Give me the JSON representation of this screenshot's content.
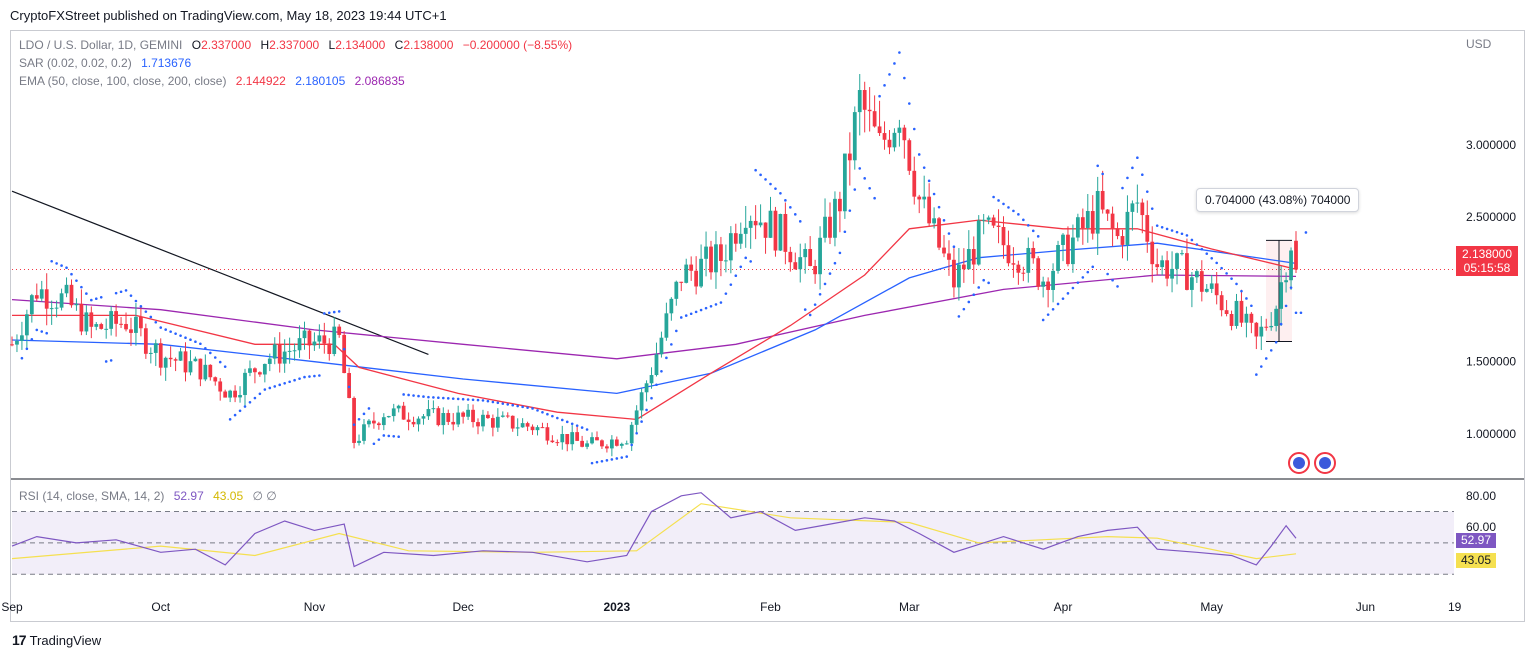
{
  "header": {
    "publisher": "CryptoFXStreet published on TradingView.com, May 18, 2023 19:44 UTC+1"
  },
  "legend": {
    "symbol": "LDO / U.S. Dollar, 1D, GEMINI",
    "ohlc": {
      "o_label": "O",
      "o": "2.337000",
      "h_label": "H",
      "h": "2.337000",
      "l_label": "L",
      "l": "2.134000",
      "c_label": "C",
      "c": "2.138000",
      "change": "−0.200000 (−8.55%)"
    },
    "sar_label": "SAR (0.02, 0.02, 0.2)",
    "sar_value": "1.713676",
    "ema_label": "EMA (50, close, 100, close, 200, close)",
    "ema50": "2.144922",
    "ema100": "2.180105",
    "ema200": "2.086835",
    "rsi_label": "RSI (14, close, SMA, 14, 2)",
    "rsi_value": "52.97",
    "rsi_sma": "43.05",
    "rsi_extra": "∅ ∅"
  },
  "axis": {
    "currency": "USD",
    "price_ticks": [
      {
        "label": "3.000000",
        "value": 3.0
      },
      {
        "label": "2.500000",
        "value": 2.5
      },
      {
        "label": "1.500000",
        "value": 1.5
      },
      {
        "label": "1.000000",
        "value": 1.0
      }
    ],
    "rsi_ticks": [
      {
        "label": "80.00",
        "value": 80
      },
      {
        "label": "60.00",
        "value": 60
      }
    ],
    "time_labels": [
      {
        "label": "Sep",
        "day": 0
      },
      {
        "label": "Oct",
        "day": 30
      },
      {
        "label": "Nov",
        "day": 61
      },
      {
        "label": "Dec",
        "day": 91
      },
      {
        "label": "2023",
        "day": 122
      },
      {
        "label": "Feb",
        "day": 153
      },
      {
        "label": "Mar",
        "day": 181
      },
      {
        "label": "Apr",
        "day": 212
      },
      {
        "label": "May",
        "day": 242
      },
      {
        "label": "Jun",
        "day": 273
      },
      {
        "label": "19",
        "day": 291
      }
    ]
  },
  "price_tag": {
    "price": "2.138000",
    "countdown": "05:15:58"
  },
  "measure": {
    "text": "0.704000 (43.08%) 704000"
  },
  "footer": {
    "brand": "TradingView"
  },
  "colors": {
    "up": "#26a69a",
    "down": "#f23645",
    "ema50": "#f23645",
    "ema100": "#2962ff",
    "ema200": "#9c27b0",
    "sar": "#2962ff",
    "rsi": "#7e57c2",
    "rsi_sma": "#f5e050"
  },
  "chart_data": {
    "type": "candlestick",
    "date_range": [
      "2022-09-01",
      "2023-05-18"
    ],
    "price_range": [
      0.75,
      3.45
    ],
    "ema_close": {
      "ema50": 2.144922,
      "ema100": 2.180105,
      "ema200": 2.086835
    },
    "close_path": [
      {
        "date": "2022-09-01",
        "close": 1.62
      },
      {
        "date": "2022-09-06",
        "close": 2.0
      },
      {
        "date": "2022-09-12",
        "close": 1.92
      },
      {
        "date": "2022-09-17",
        "close": 1.72
      },
      {
        "date": "2022-09-24",
        "close": 1.78
      },
      {
        "date": "2022-10-01",
        "close": 1.55
      },
      {
        "date": "2022-10-09",
        "close": 1.45
      },
      {
        "date": "2022-10-15",
        "close": 1.28
      },
      {
        "date": "2022-10-22",
        "close": 1.52
      },
      {
        "date": "2022-10-30",
        "close": 1.62
      },
      {
        "date": "2022-11-06",
        "close": 1.65
      },
      {
        "date": "2022-11-09",
        "close": 0.95
      },
      {
        "date": "2022-11-15",
        "close": 1.15
      },
      {
        "date": "2022-11-24",
        "close": 1.12
      },
      {
        "date": "2022-12-05",
        "close": 1.1
      },
      {
        "date": "2022-12-15",
        "close": 1.05
      },
      {
        "date": "2022-12-26",
        "close": 0.92
      },
      {
        "date": "2023-01-03",
        "close": 0.98
      },
      {
        "date": "2023-01-08",
        "close": 1.45
      },
      {
        "date": "2023-01-14",
        "close": 2.1
      },
      {
        "date": "2023-01-22",
        "close": 2.22
      },
      {
        "date": "2023-01-27",
        "close": 2.58
      },
      {
        "date": "2023-02-03",
        "close": 2.38
      },
      {
        "date": "2023-02-09",
        "close": 2.12
      },
      {
        "date": "2023-02-15",
        "close": 2.62
      },
      {
        "date": "2023-02-19",
        "close": 3.3
      },
      {
        "date": "2023-02-23",
        "close": 2.98
      },
      {
        "date": "2023-02-27",
        "close": 3.25
      },
      {
        "date": "2023-03-03",
        "close": 2.62
      },
      {
        "date": "2023-03-10",
        "close": 2.05
      },
      {
        "date": "2023-03-16",
        "close": 2.4
      },
      {
        "date": "2023-03-23",
        "close": 2.25
      },
      {
        "date": "2023-03-28",
        "close": 2.08
      },
      {
        "date": "2023-04-04",
        "close": 2.38
      },
      {
        "date": "2023-04-08",
        "close": 2.55
      },
      {
        "date": "2023-04-12",
        "close": 2.35
      },
      {
        "date": "2023-04-16",
        "close": 2.6
      },
      {
        "date": "2023-04-20",
        "close": 2.18
      },
      {
        "date": "2023-04-26",
        "close": 2.12
      },
      {
        "date": "2023-05-02",
        "close": 1.95
      },
      {
        "date": "2023-05-06",
        "close": 1.82
      },
      {
        "date": "2023-05-10",
        "close": 1.64
      },
      {
        "date": "2023-05-14",
        "close": 1.9
      },
      {
        "date": "2023-05-17",
        "close": 2.34
      },
      {
        "date": "2023-05-18",
        "close": 2.138
      }
    ],
    "ema50_path": [
      {
        "date": "2022-09-01",
        "value": 1.82
      },
      {
        "date": "2022-09-26",
        "value": 1.82
      },
      {
        "date": "2022-10-20",
        "value": 1.62
      },
      {
        "date": "2022-11-05",
        "value": 1.62
      },
      {
        "date": "2022-11-10",
        "value": 1.46
      },
      {
        "date": "2022-11-30",
        "value": 1.28
      },
      {
        "date": "2022-12-20",
        "value": 1.15
      },
      {
        "date": "2023-01-05",
        "value": 1.1
      },
      {
        "date": "2023-01-20",
        "value": 1.42
      },
      {
        "date": "2023-02-05",
        "value": 1.75
      },
      {
        "date": "2023-02-20",
        "value": 2.1
      },
      {
        "date": "2023-03-01",
        "value": 2.42
      },
      {
        "date": "2023-03-15",
        "value": 2.48
      },
      {
        "date": "2023-04-01",
        "value": 2.42
      },
      {
        "date": "2023-04-16",
        "value": 2.42
      },
      {
        "date": "2023-05-01",
        "value": 2.28
      },
      {
        "date": "2023-05-18",
        "value": 2.14
      }
    ],
    "ema100_path": [
      {
        "date": "2022-09-01",
        "value": 1.65
      },
      {
        "date": "2022-10-01",
        "value": 1.62
      },
      {
        "date": "2022-11-01",
        "value": 1.5
      },
      {
        "date": "2022-12-01",
        "value": 1.38
      },
      {
        "date": "2023-01-01",
        "value": 1.28
      },
      {
        "date": "2023-01-20",
        "value": 1.42
      },
      {
        "date": "2023-02-10",
        "value": 1.72
      },
      {
        "date": "2023-03-01",
        "value": 2.08
      },
      {
        "date": "2023-03-15",
        "value": 2.22
      },
      {
        "date": "2023-04-01",
        "value": 2.27
      },
      {
        "date": "2023-04-20",
        "value": 2.32
      },
      {
        "date": "2023-05-18",
        "value": 2.18
      }
    ],
    "ema200_path": [
      {
        "date": "2022-09-01",
        "value": 1.93
      },
      {
        "date": "2022-10-01",
        "value": 1.86
      },
      {
        "date": "2022-11-01",
        "value": 1.72
      },
      {
        "date": "2022-12-01",
        "value": 1.62
      },
      {
        "date": "2023-01-01",
        "value": 1.52
      },
      {
        "date": "2023-01-25",
        "value": 1.62
      },
      {
        "date": "2023-02-20",
        "value": 1.82
      },
      {
        "date": "2023-03-20",
        "value": 2.0
      },
      {
        "date": "2023-04-20",
        "value": 2.1
      },
      {
        "date": "2023-05-18",
        "value": 2.09
      }
    ],
    "rsi_path": [
      {
        "date": "2022-09-01",
        "value": 48
      },
      {
        "date": "2022-09-06",
        "value": 54
      },
      {
        "date": "2022-09-14",
        "value": 50
      },
      {
        "date": "2022-09-22",
        "value": 52
      },
      {
        "date": "2022-10-01",
        "value": 44
      },
      {
        "date": "2022-10-08",
        "value": 46
      },
      {
        "date": "2022-10-14",
        "value": 36
      },
      {
        "date": "2022-10-20",
        "value": 56
      },
      {
        "date": "2022-10-26",
        "value": 64
      },
      {
        "date": "2022-11-01",
        "value": 58
      },
      {
        "date": "2022-11-07",
        "value": 62
      },
      {
        "date": "2022-11-09",
        "value": 35
      },
      {
        "date": "2022-11-15",
        "value": 44
      },
      {
        "date": "2022-11-25",
        "value": 42
      },
      {
        "date": "2022-12-05",
        "value": 45
      },
      {
        "date": "2022-12-15",
        "value": 44
      },
      {
        "date": "2022-12-26",
        "value": 38
      },
      {
        "date": "2023-01-03",
        "value": 42
      },
      {
        "date": "2023-01-08",
        "value": 70
      },
      {
        "date": "2023-01-14",
        "value": 80
      },
      {
        "date": "2023-01-18",
        "value": 82
      },
      {
        "date": "2023-01-24",
        "value": 66
      },
      {
        "date": "2023-01-30",
        "value": 70
      },
      {
        "date": "2023-02-06",
        "value": 58
      },
      {
        "date": "2023-02-13",
        "value": 62
      },
      {
        "date": "2023-02-20",
        "value": 66
      },
      {
        "date": "2023-02-26",
        "value": 64
      },
      {
        "date": "2023-03-03",
        "value": 56
      },
      {
        "date": "2023-03-10",
        "value": 44
      },
      {
        "date": "2023-03-20",
        "value": 54
      },
      {
        "date": "2023-03-28",
        "value": 46
      },
      {
        "date": "2023-04-04",
        "value": 54
      },
      {
        "date": "2023-04-10",
        "value": 58
      },
      {
        "date": "2023-04-16",
        "value": 60
      },
      {
        "date": "2023-04-20",
        "value": 46
      },
      {
        "date": "2023-04-28",
        "value": 44
      },
      {
        "date": "2023-05-05",
        "value": 42
      },
      {
        "date": "2023-05-10",
        "value": 36
      },
      {
        "date": "2023-05-13",
        "value": 48
      },
      {
        "date": "2023-05-16",
        "value": 61
      },
      {
        "date": "2023-05-18",
        "value": 52.97
      }
    ],
    "rsi_sma_path": [
      {
        "date": "2022-09-01",
        "value": 40
      },
      {
        "date": "2022-10-01",
        "value": 48
      },
      {
        "date": "2022-10-20",
        "value": 42
      },
      {
        "date": "2022-11-06",
        "value": 56
      },
      {
        "date": "2022-11-20",
        "value": 45
      },
      {
        "date": "2022-12-15",
        "value": 44
      },
      {
        "date": "2023-01-05",
        "value": 45
      },
      {
        "date": "2023-01-18",
        "value": 75
      },
      {
        "date": "2023-02-05",
        "value": 66
      },
      {
        "date": "2023-03-01",
        "value": 63
      },
      {
        "date": "2023-03-15",
        "value": 50
      },
      {
        "date": "2023-04-10",
        "value": 54
      },
      {
        "date": "2023-04-20",
        "value": 53
      },
      {
        "date": "2023-05-10",
        "value": 40
      },
      {
        "date": "2023-05-18",
        "value": 43.05
      }
    ],
    "trendline": [
      {
        "date": "2022-09-01",
        "value": 2.68
      },
      {
        "date": "2022-11-24",
        "value": 1.55
      }
    ],
    "rsi_bands": [
      30,
      50,
      70
    ],
    "rsi_range": [
      20,
      85
    ]
  }
}
